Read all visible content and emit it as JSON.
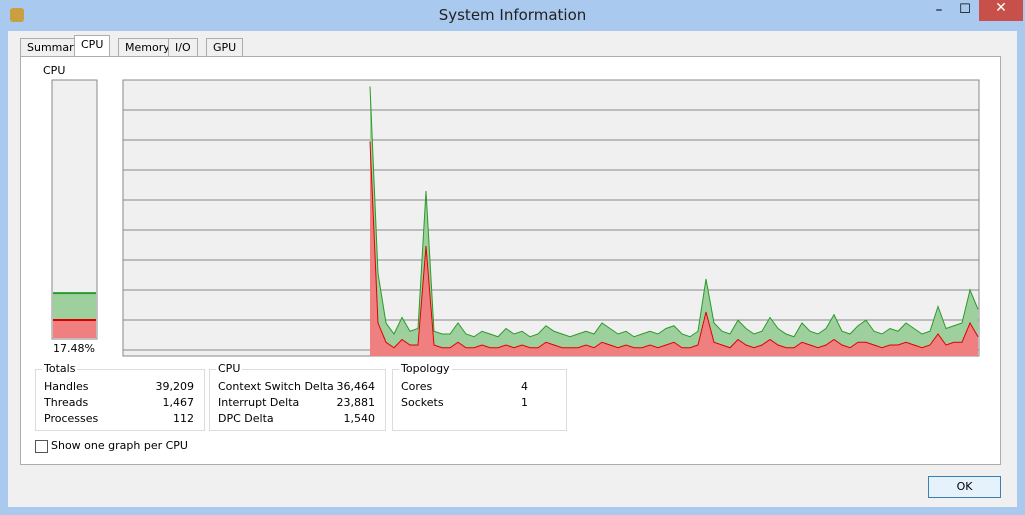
{
  "window": {
    "title": "System Information",
    "ok": "OK"
  },
  "tabs": [
    "Summary",
    "CPU",
    "Memory",
    "I/O",
    "GPU"
  ],
  "meter": {
    "label": "CPU",
    "total": 17.48,
    "total_label": "17.48%",
    "kernel": 7
  },
  "cpu_history": {
    "total": [
      98,
      30,
      12,
      8,
      14,
      9,
      10,
      60,
      9,
      8,
      8,
      12,
      8,
      7,
      9,
      8,
      7,
      10,
      8,
      9,
      7,
      8,
      11,
      9,
      8,
      7,
      8,
      9,
      8,
      12,
      10,
      8,
      9,
      7,
      8,
      9,
      8,
      10,
      11,
      8,
      7,
      9,
      28,
      12,
      9,
      8,
      13,
      10,
      8,
      9,
      14,
      10,
      8,
      7,
      12,
      9,
      8,
      10,
      15,
      9,
      8,
      11,
      13,
      9,
      8,
      10,
      9,
      12,
      10,
      8,
      9,
      18,
      10,
      11,
      12,
      24,
      17
    ],
    "kernel": [
      78,
      12,
      5,
      3,
      6,
      4,
      4,
      40,
      4,
      3,
      3,
      5,
      3,
      3,
      4,
      3,
      3,
      4,
      3,
      4,
      3,
      3,
      5,
      4,
      3,
      3,
      3,
      4,
      3,
      5,
      4,
      3,
      4,
      3,
      3,
      4,
      3,
      4,
      5,
      3,
      3,
      4,
      16,
      5,
      4,
      3,
      6,
      4,
      3,
      4,
      6,
      4,
      3,
      3,
      5,
      4,
      3,
      4,
      6,
      4,
      3,
      5,
      5,
      4,
      3,
      4,
      4,
      5,
      4,
      3,
      4,
      8,
      4,
      5,
      5,
      12,
      7
    ]
  },
  "totals": {
    "title": "Totals",
    "rows": [
      [
        "Handles",
        "39,209"
      ],
      [
        "Threads",
        "1,467"
      ],
      [
        "Processes",
        "112"
      ]
    ]
  },
  "cpu": {
    "title": "CPU",
    "rows": [
      [
        "Context Switch Delta",
        "36,464"
      ],
      [
        "Interrupt Delta",
        "23,881"
      ],
      [
        "DPC Delta",
        "1,540"
      ]
    ]
  },
  "topology": {
    "title": "Topology",
    "rows": [
      [
        "Cores",
        "4"
      ],
      [
        "Sockets",
        "1"
      ]
    ]
  },
  "checkbox": "Show one graph per CPU"
}
